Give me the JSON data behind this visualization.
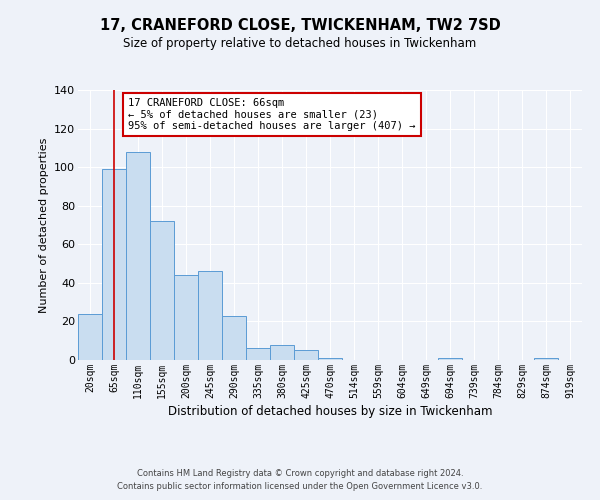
{
  "title": "17, CRANEFORD CLOSE, TWICKENHAM, TW2 7SD",
  "subtitle": "Size of property relative to detached houses in Twickenham",
  "xlabel": "Distribution of detached houses by size in Twickenham",
  "ylabel": "Number of detached properties",
  "categories": [
    "20sqm",
    "65sqm",
    "110sqm",
    "155sqm",
    "200sqm",
    "245sqm",
    "290sqm",
    "335sqm",
    "380sqm",
    "425sqm",
    "470sqm",
    "514sqm",
    "559sqm",
    "604sqm",
    "649sqm",
    "694sqm",
    "739sqm",
    "784sqm",
    "829sqm",
    "874sqm",
    "919sqm"
  ],
  "values": [
    24,
    99,
    108,
    72,
    44,
    46,
    23,
    6,
    8,
    5,
    1,
    0,
    0,
    0,
    0,
    1,
    0,
    0,
    0,
    1,
    0
  ],
  "bar_color": "#c9ddf0",
  "bar_edge_color": "#5b9bd5",
  "background_color": "#eef2f9",
  "grid_color": "#ffffff",
  "ylim": [
    0,
    140
  ],
  "yticks": [
    0,
    20,
    40,
    60,
    80,
    100,
    120,
    140
  ],
  "annotation_line1": "17 CRANEFORD CLOSE: 66sqm",
  "annotation_line2": "← 5% of detached houses are smaller (23)",
  "annotation_line3": "95% of semi-detached houses are larger (407) →",
  "annotation_box_color": "#ffffff",
  "annotation_box_edge_color": "#cc0000",
  "red_line_x": 1,
  "footnote1": "Contains HM Land Registry data © Crown copyright and database right 2024.",
  "footnote2": "Contains public sector information licensed under the Open Government Licence v3.0."
}
